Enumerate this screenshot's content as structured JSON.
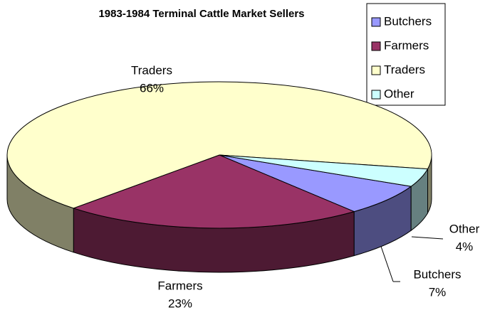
{
  "chart_data": {
    "type": "pie3d",
    "title": "1983-1984 Terminal Cattle Market Sellers",
    "categories": [
      "Butchers",
      "Farmers",
      "Traders",
      "Other"
    ],
    "values": [
      7,
      23,
      66,
      4
    ],
    "value_labels": [
      "7%",
      "23%",
      "66%",
      "4%"
    ],
    "colors": [
      "#9999ff",
      "#993366",
      "#ffffcc",
      "#ccffff"
    ],
    "legend": "top-right"
  }
}
